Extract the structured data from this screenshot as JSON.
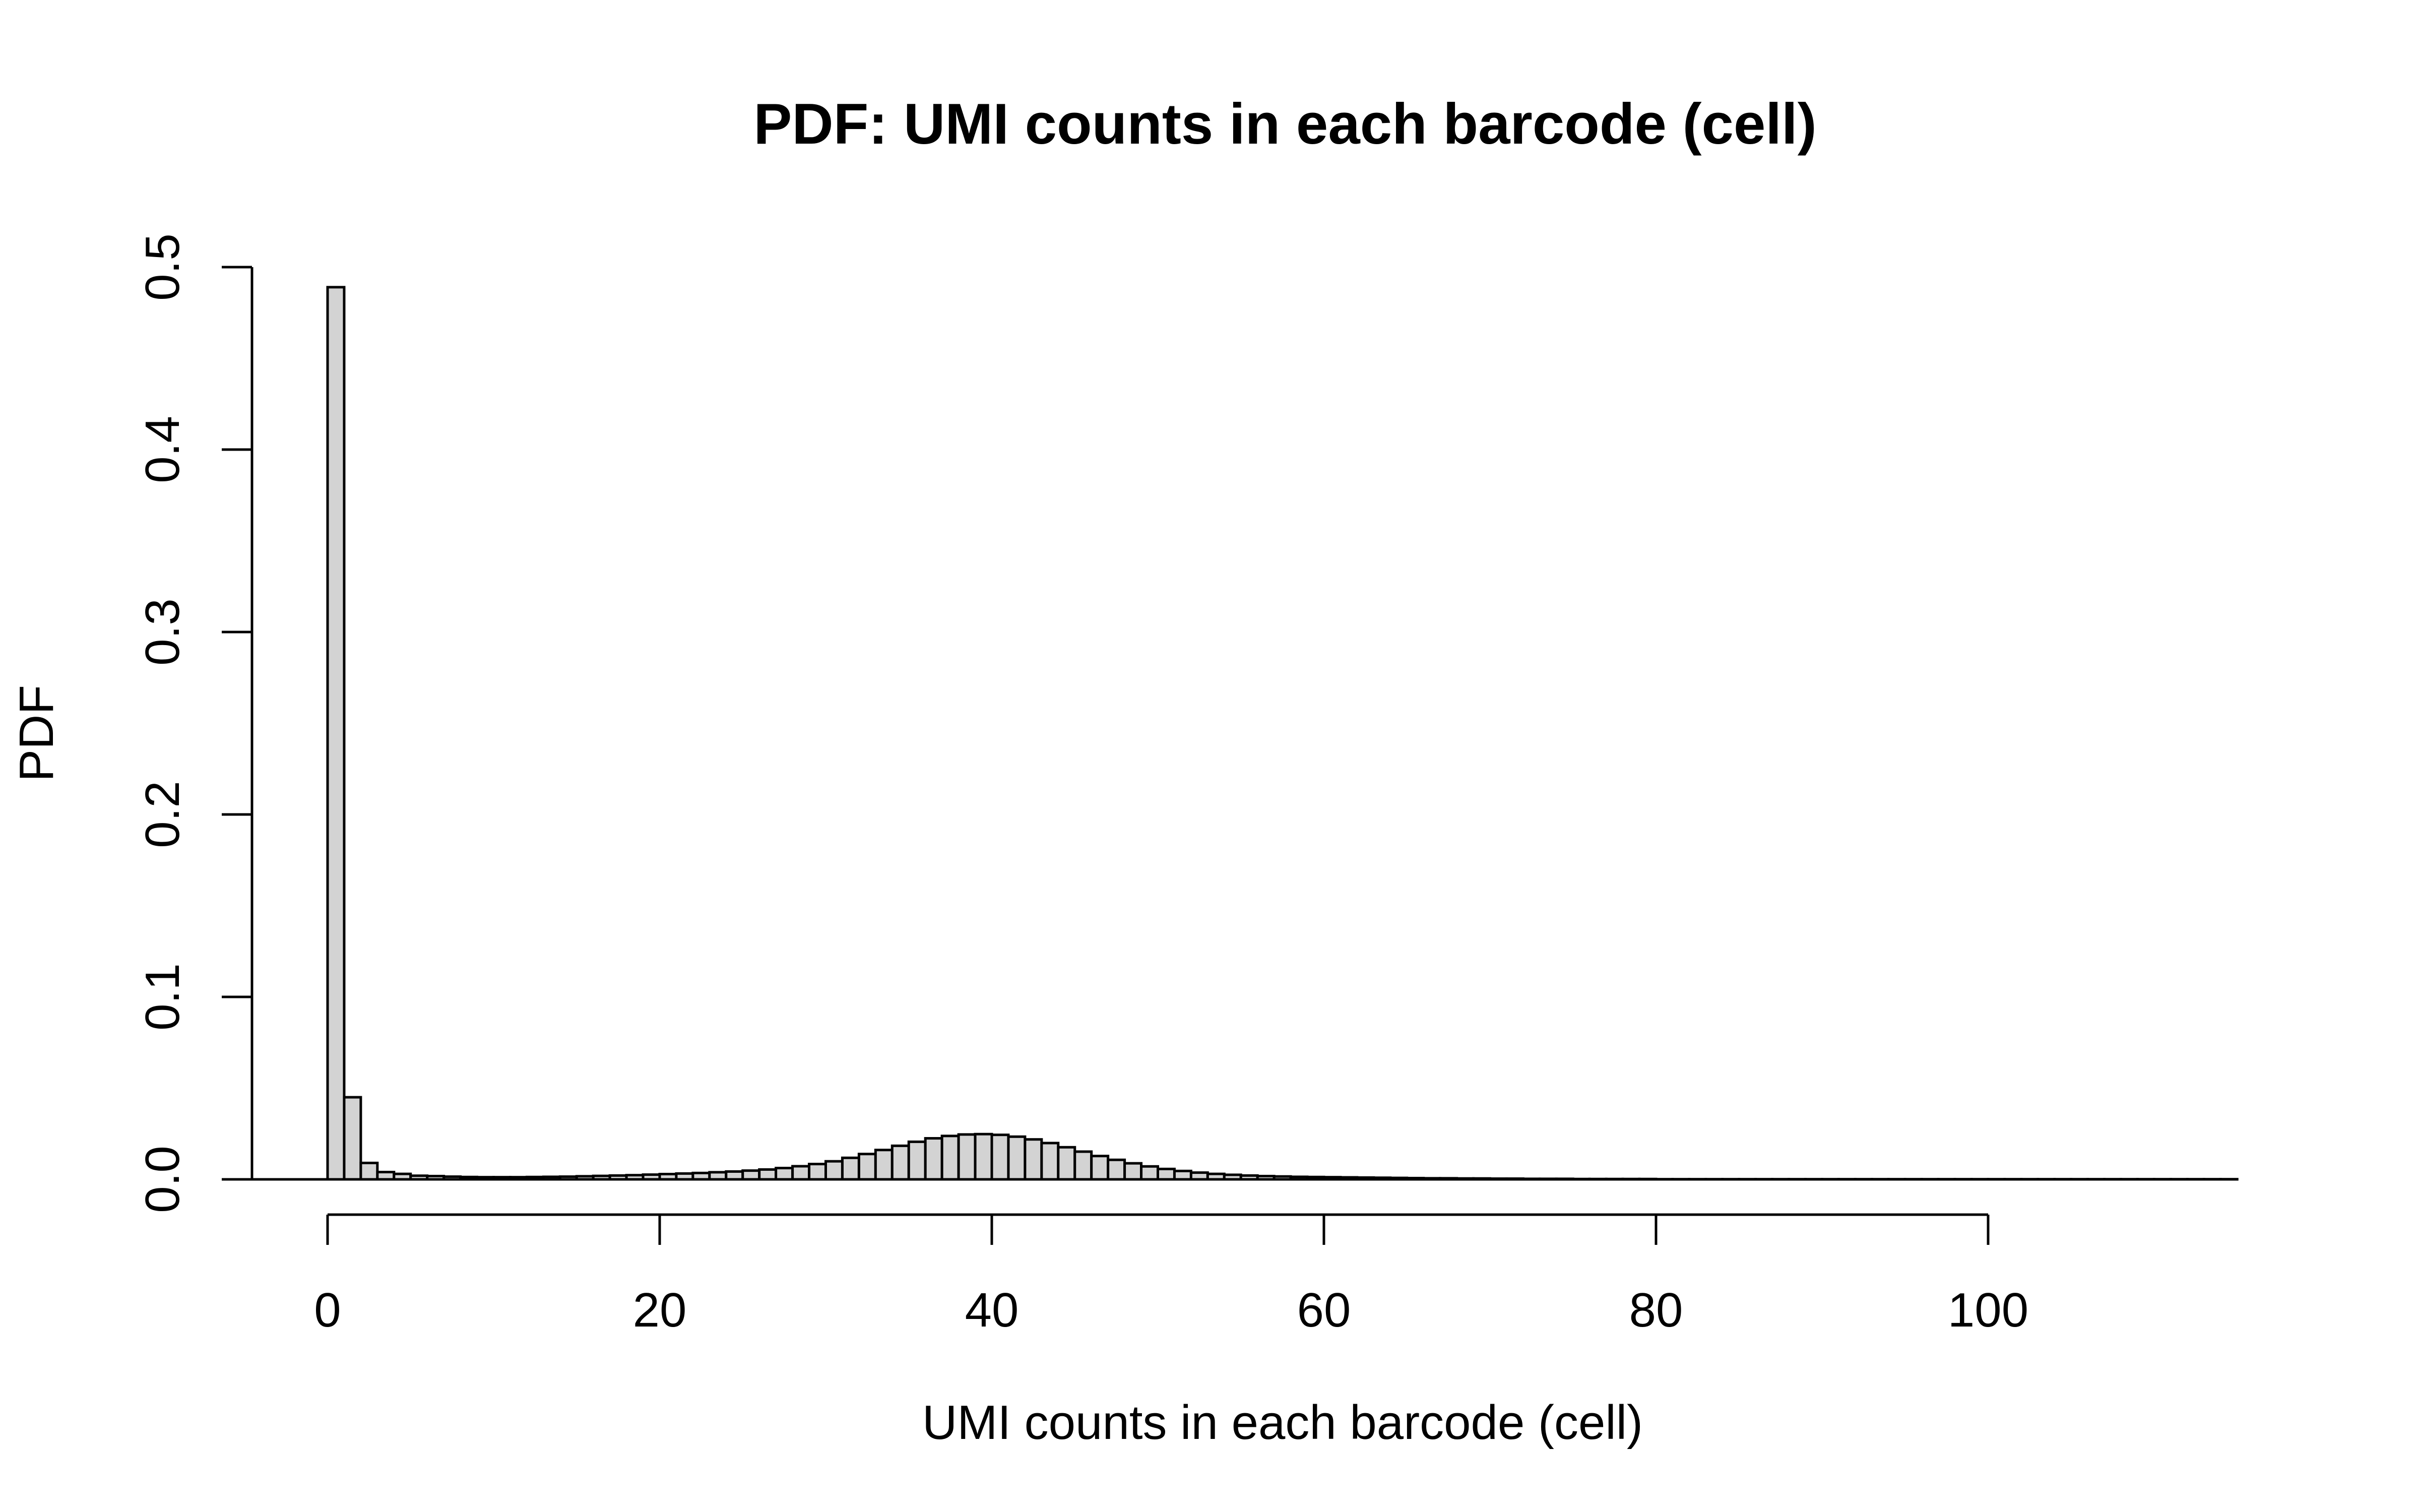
{
  "chart_data": {
    "type": "bar",
    "title": "PDF: UMI counts in each barcode (cell)",
    "xlabel": "UMI counts in each barcode (cell)",
    "ylabel": "PDF",
    "xlim": [
      0,
      115
    ],
    "ylim": [
      0,
      0.5
    ],
    "xticks": [
      "0",
      "20",
      "40",
      "60",
      "80",
      "100"
    ],
    "yticks": [
      "0.0",
      "0.1",
      "0.2",
      "0.3",
      "0.4",
      "0.5"
    ],
    "grid": false,
    "legend": "none",
    "bin_width": 1,
    "x": [
      0,
      1,
      2,
      3,
      4,
      5,
      6,
      7,
      8,
      9,
      10,
      11,
      12,
      13,
      14,
      15,
      16,
      17,
      18,
      19,
      20,
      21,
      22,
      23,
      24,
      25,
      26,
      27,
      28,
      29,
      30,
      31,
      32,
      33,
      34,
      35,
      36,
      37,
      38,
      39,
      40,
      41,
      42,
      43,
      44,
      45,
      46,
      47,
      48,
      49,
      50,
      51,
      52,
      53,
      54,
      55,
      56,
      57,
      58,
      59,
      60,
      61,
      62,
      63,
      64,
      65,
      66,
      67,
      68,
      69,
      70,
      71,
      72,
      73,
      74,
      75,
      76,
      77,
      78,
      79,
      80,
      81,
      82,
      83,
      84,
      85,
      86,
      87,
      88,
      89,
      90,
      91,
      92,
      93,
      94,
      95,
      96,
      97,
      98,
      99,
      100,
      101,
      102,
      103,
      104,
      105,
      106,
      107,
      108,
      109,
      110,
      111,
      112,
      113,
      114
    ],
    "values": [
      0.489,
      0.045,
      0.009,
      0.004,
      0.003,
      0.002,
      0.0018,
      0.0015,
      0.0013,
      0.0012,
      0.0012,
      0.0012,
      0.0013,
      0.0014,
      0.0015,
      0.0017,
      0.0019,
      0.0021,
      0.0023,
      0.0026,
      0.0029,
      0.0032,
      0.0035,
      0.0039,
      0.0043,
      0.0048,
      0.0054,
      0.0062,
      0.0072,
      0.0084,
      0.0099,
      0.0118,
      0.0139,
      0.0161,
      0.0184,
      0.0206,
      0.0225,
      0.0238,
      0.0246,
      0.0248,
      0.0244,
      0.0234,
      0.0219,
      0.0199,
      0.0176,
      0.0152,
      0.0128,
      0.0107,
      0.0088,
      0.0071,
      0.0057,
      0.0046,
      0.0037,
      0.003,
      0.0025,
      0.0021,
      0.0018,
      0.0016,
      0.0014,
      0.0013,
      0.0012,
      0.0011,
      0.001,
      0.0009,
      0.0008,
      0.0007,
      0.0006,
      0.0006,
      0.0005,
      0.0005,
      0.0004,
      0.0004,
      0.0003,
      0.0003,
      0.0003,
      0.0002,
      0.0002,
      0.0002,
      0.0002,
      0.0002,
      0.0001,
      0.0001,
      0.0001,
      0.0001,
      0.0001,
      0.0001,
      0.0001,
      0.0001,
      0.0001,
      0.0001,
      0.0001,
      0.0001,
      0.0001,
      0.0001,
      0.0001,
      0.0001,
      0.0001,
      0.0001,
      0.0001,
      0.0001,
      0.0001,
      0.0001,
      0.0001,
      0.0001,
      0.0001,
      0.0001,
      0.0001,
      0.0001,
      0.0001,
      0.0001,
      0.0001,
      0.0001,
      0.0001,
      0.0001,
      0.0001
    ]
  }
}
